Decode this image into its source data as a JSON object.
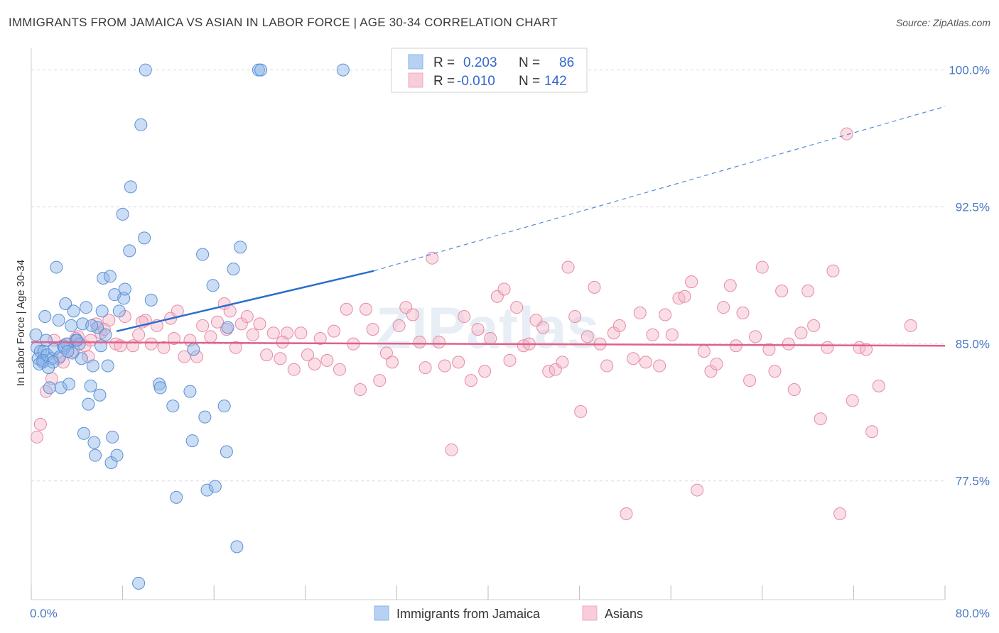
{
  "header": {
    "title": "IMMIGRANTS FROM JAMAICA VS ASIAN IN LABOR FORCE | AGE 30-34 CORRELATION CHART",
    "source": "Source: ZipAtlas.com"
  },
  "watermark": "ZIPatlas",
  "legend": {
    "rows": [
      {
        "r_label": "R =",
        "r_value": "0.203",
        "n_label": "N =",
        "n_value": "86"
      },
      {
        "r_label": "R =",
        "r_value": "-0.010",
        "n_label": "N =",
        "n_value": "142"
      }
    ]
  },
  "bottom_legend": [
    "Immigrants from Jamaica",
    "Asians"
  ],
  "colors": {
    "blue": "#8ab4e8",
    "blue_stroke": "#5b8fd6",
    "blue_line": "#2a6fcc",
    "pink": "#f4b6c8",
    "pink_stroke": "#e68aa6",
    "pink_line": "#e0608a",
    "grid": "#d8d8d8",
    "tick_label": "#4a78c2"
  },
  "chart_data": {
    "type": "scatter",
    "title": "IMMIGRANTS FROM JAMAICA VS ASIAN IN LABOR FORCE | AGE 30-34 CORRELATION CHART",
    "xlabel": "",
    "ylabel": "In Labor Force | Age 30-34",
    "xlim": [
      0,
      80
    ],
    "ylim": [
      71,
      100.8
    ],
    "x_tick_labels": [
      "0.0%",
      "80.0%"
    ],
    "y_ticks": [
      77.5,
      85.0,
      92.5,
      100.0
    ],
    "y_tick_labels": [
      "77.5%",
      "85.0%",
      "92.5%",
      "100.0%"
    ],
    "grid": true,
    "legend_position": "top-center",
    "series": [
      {
        "name": "Immigrants from Jamaica",
        "R": 0.203,
        "N": 86,
        "trend": {
          "x": [
            0,
            30
          ],
          "y": [
            84.6,
            89.0
          ],
          "dashed_to": [
            80,
            98.0
          ]
        },
        "points": [
          [
            0.4,
            85.5
          ],
          [
            0.5,
            84.8
          ],
          [
            0.6,
            84.2
          ],
          [
            0.8,
            84.6
          ],
          [
            1.0,
            84.0
          ],
          [
            1.1,
            84.6
          ],
          [
            1.2,
            86.5
          ],
          [
            1.3,
            85.2
          ],
          [
            1.4,
            84.4
          ],
          [
            1.6,
            82.6
          ],
          [
            1.8,
            84.2
          ],
          [
            2.0,
            84.7
          ],
          [
            2.2,
            89.2
          ],
          [
            2.4,
            86.3
          ],
          [
            2.6,
            82.6
          ],
          [
            2.8,
            84.9
          ],
          [
            3.0,
            87.2
          ],
          [
            3.1,
            85.0
          ],
          [
            3.3,
            82.8
          ],
          [
            3.5,
            86.0
          ],
          [
            3.7,
            86.8
          ],
          [
            3.9,
            85.2
          ],
          [
            4.2,
            85.0
          ],
          [
            4.4,
            84.2
          ],
          [
            4.6,
            80.1
          ],
          [
            4.8,
            87.0
          ],
          [
            5.0,
            81.7
          ],
          [
            5.2,
            82.7
          ],
          [
            5.4,
            83.8
          ],
          [
            5.5,
            79.6
          ],
          [
            5.6,
            78.9
          ],
          [
            5.8,
            85.9
          ],
          [
            6.0,
            82.2
          ],
          [
            6.2,
            86.8
          ],
          [
            6.3,
            88.6
          ],
          [
            6.5,
            85.5
          ],
          [
            6.7,
            83.8
          ],
          [
            6.9,
            88.7
          ],
          [
            7.0,
            78.5
          ],
          [
            7.1,
            79.9
          ],
          [
            7.3,
            87.7
          ],
          [
            7.5,
            78.9
          ],
          [
            7.7,
            86.8
          ],
          [
            8.0,
            92.1
          ],
          [
            8.1,
            87.5
          ],
          [
            8.2,
            88.0
          ],
          [
            8.6,
            90.1
          ],
          [
            8.7,
            93.6
          ],
          [
            9.6,
            97.0
          ],
          [
            9.9,
            90.8
          ],
          [
            10.0,
            100.0
          ],
          [
            10.5,
            87.4
          ],
          [
            11.2,
            82.8
          ],
          [
            11.3,
            82.6
          ],
          [
            12.4,
            81.6
          ],
          [
            12.7,
            76.6
          ],
          [
            13.9,
            82.4
          ],
          [
            14.1,
            79.7
          ],
          [
            14.2,
            84.7
          ],
          [
            15.0,
            89.9
          ],
          [
            15.2,
            81.0
          ],
          [
            15.4,
            77.0
          ],
          [
            15.9,
            88.2
          ],
          [
            16.1,
            77.2
          ],
          [
            16.9,
            81.6
          ],
          [
            17.1,
            79.1
          ],
          [
            17.2,
            85.9
          ],
          [
            17.7,
            89.1
          ],
          [
            18.0,
            73.9
          ],
          [
            18.3,
            90.3
          ],
          [
            19.9,
            100.0
          ],
          [
            20.1,
            100.0
          ],
          [
            27.3,
            100.0
          ],
          [
            9.4,
            71.9
          ],
          [
            1.0,
            84.1
          ],
          [
            2.5,
            84.3
          ],
          [
            3.6,
            84.5
          ],
          [
            4.0,
            85.2
          ],
          [
            0.7,
            83.9
          ],
          [
            1.9,
            84.0
          ],
          [
            4.5,
            86.1
          ],
          [
            6.1,
            84.9
          ],
          [
            2.9,
            84.8
          ],
          [
            5.3,
            86.0
          ],
          [
            1.5,
            83.7
          ],
          [
            3.2,
            84.6
          ]
        ]
      },
      {
        "name": "Asians",
        "R": -0.01,
        "N": 142,
        "trend": {
          "x": [
            0,
            80
          ],
          "y": [
            85.1,
            84.9
          ]
        },
        "points": [
          [
            0.5,
            79.9
          ],
          [
            0.8,
            80.6
          ],
          [
            1.3,
            82.4
          ],
          [
            1.8,
            83.1
          ],
          [
            2.4,
            84.2
          ],
          [
            2.8,
            84.0
          ],
          [
            3.2,
            85.0
          ],
          [
            3.7,
            84.6
          ],
          [
            4.1,
            85.4
          ],
          [
            4.7,
            84.9
          ],
          [
            5.2,
            85.2
          ],
          [
            5.7,
            86.1
          ],
          [
            6.1,
            85.6
          ],
          [
            6.8,
            86.3
          ],
          [
            7.4,
            85.0
          ],
          [
            8.2,
            86.5
          ],
          [
            8.9,
            84.9
          ],
          [
            9.4,
            85.5
          ],
          [
            10.0,
            86.3
          ],
          [
            10.5,
            85.0
          ],
          [
            11.0,
            86.0
          ],
          [
            11.6,
            84.8
          ],
          [
            12.2,
            86.4
          ],
          [
            12.8,
            86.8
          ],
          [
            13.4,
            84.3
          ],
          [
            13.9,
            85.2
          ],
          [
            14.5,
            84.3
          ],
          [
            15.0,
            86.0
          ],
          [
            15.7,
            85.4
          ],
          [
            16.3,
            86.2
          ],
          [
            16.9,
            87.2
          ],
          [
            17.4,
            86.8
          ],
          [
            17.9,
            84.8
          ],
          [
            18.4,
            86.1
          ],
          [
            18.9,
            86.5
          ],
          [
            19.4,
            85.5
          ],
          [
            20.0,
            86.1
          ],
          [
            20.6,
            84.4
          ],
          [
            21.2,
            85.6
          ],
          [
            21.8,
            84.2
          ],
          [
            22.4,
            85.6
          ],
          [
            23.0,
            83.6
          ],
          [
            23.6,
            85.6
          ],
          [
            24.2,
            84.4
          ],
          [
            24.8,
            83.9
          ],
          [
            25.3,
            85.3
          ],
          [
            25.9,
            84.1
          ],
          [
            26.5,
            85.7
          ],
          [
            27.0,
            83.6
          ],
          [
            27.6,
            86.9
          ],
          [
            28.2,
            85.0
          ],
          [
            28.8,
            82.5
          ],
          [
            29.3,
            86.9
          ],
          [
            29.9,
            85.8
          ],
          [
            30.5,
            83.0
          ],
          [
            31.1,
            84.5
          ],
          [
            31.6,
            84.0
          ],
          [
            32.2,
            86.0
          ],
          [
            32.8,
            87.0
          ],
          [
            33.4,
            86.6
          ],
          [
            34.0,
            85.1
          ],
          [
            34.5,
            83.7
          ],
          [
            35.1,
            89.7
          ],
          [
            35.7,
            85.1
          ],
          [
            36.2,
            83.8
          ],
          [
            36.8,
            79.2
          ],
          [
            37.4,
            84.0
          ],
          [
            37.9,
            86.5
          ],
          [
            38.5,
            83.0
          ],
          [
            39.1,
            85.8
          ],
          [
            39.7,
            83.5
          ],
          [
            40.2,
            85.3
          ],
          [
            40.8,
            87.6
          ],
          [
            41.4,
            88.0
          ],
          [
            41.9,
            84.1
          ],
          [
            42.5,
            87.0
          ],
          [
            43.1,
            84.9
          ],
          [
            43.6,
            85.0
          ],
          [
            44.2,
            86.3
          ],
          [
            44.8,
            85.9
          ],
          [
            45.3,
            83.5
          ],
          [
            45.9,
            83.6
          ],
          [
            46.5,
            84.0
          ],
          [
            47.0,
            89.2
          ],
          [
            47.6,
            86.5
          ],
          [
            48.1,
            81.3
          ],
          [
            48.7,
            85.4
          ],
          [
            49.3,
            88.1
          ],
          [
            49.8,
            85.0
          ],
          [
            50.4,
            83.8
          ],
          [
            51.0,
            85.6
          ],
          [
            51.5,
            86.0
          ],
          [
            52.1,
            75.7
          ],
          [
            52.7,
            84.2
          ],
          [
            53.3,
            86.7
          ],
          [
            53.8,
            84.0
          ],
          [
            54.4,
            85.5
          ],
          [
            55.0,
            83.8
          ],
          [
            55.5,
            86.6
          ],
          [
            56.1,
            85.5
          ],
          [
            56.7,
            87.5
          ],
          [
            57.2,
            87.6
          ],
          [
            57.8,
            88.4
          ],
          [
            58.3,
            77.0
          ],
          [
            58.9,
            84.6
          ],
          [
            59.5,
            83.5
          ],
          [
            60.0,
            83.9
          ],
          [
            60.6,
            87.0
          ],
          [
            61.2,
            88.2
          ],
          [
            61.7,
            84.9
          ],
          [
            62.3,
            86.7
          ],
          [
            62.9,
            83.0
          ],
          [
            63.4,
            85.4
          ],
          [
            64.0,
            89.2
          ],
          [
            64.6,
            84.7
          ],
          [
            65.1,
            83.5
          ],
          [
            65.7,
            87.9
          ],
          [
            66.3,
            85.0
          ],
          [
            66.8,
            82.5
          ],
          [
            67.4,
            85.6
          ],
          [
            68.0,
            87.9
          ],
          [
            68.5,
            86.0
          ],
          [
            69.1,
            80.9
          ],
          [
            69.7,
            84.8
          ],
          [
            70.2,
            89.0
          ],
          [
            70.8,
            75.7
          ],
          [
            71.4,
            96.5
          ],
          [
            71.9,
            81.9
          ],
          [
            72.5,
            84.8
          ],
          [
            73.1,
            84.7
          ],
          [
            73.6,
            80.2
          ],
          [
            74.2,
            82.7
          ],
          [
            77.0,
            86.0
          ],
          [
            2.0,
            85.2
          ],
          [
            3.9,
            85.3
          ],
          [
            5.0,
            84.3
          ],
          [
            6.4,
            85.8
          ],
          [
            7.8,
            84.9
          ],
          [
            9.7,
            86.2
          ],
          [
            12.5,
            85.3
          ],
          [
            17.1,
            85.8
          ],
          [
            22.0,
            85.1
          ]
        ]
      }
    ]
  }
}
